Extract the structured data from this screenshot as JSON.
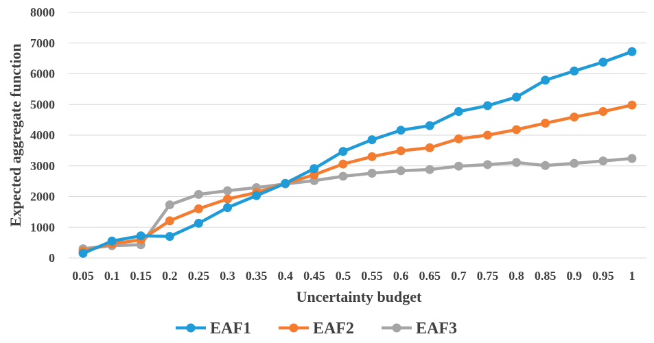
{
  "chart_data": {
    "type": "line",
    "title": "",
    "xlabel": "Uncertainty budget",
    "ylabel": "Expected aggregate function",
    "ylim": [
      0,
      8000
    ],
    "yticks": [
      "0",
      "1000",
      "2000",
      "3000",
      "4000",
      "5000",
      "6000",
      "7000",
      "8000"
    ],
    "categories": [
      "0.05",
      "0.1",
      "0.15",
      "0.2",
      "0.25",
      "0.3",
      "0.35",
      "0.4",
      "0.45",
      "0.5",
      "0.55",
      "0.6",
      "0.65",
      "0.7",
      "0.75",
      "0.8",
      "0.85",
      "0.9",
      "0.95",
      "1"
    ],
    "grid": true,
    "legend_position": "bottom",
    "series": [
      {
        "name": "EAF1",
        "color": "#1f9bd7",
        "values": [
          150,
          550,
          720,
          700,
          1130,
          1640,
          2030,
          2430,
          2910,
          3470,
          3850,
          4160,
          4310,
          4770,
          4960,
          5240,
          5790,
          6090,
          6380,
          6720
        ]
      },
      {
        "name": "EAF2",
        "color": "#f47c30",
        "values": [
          220,
          460,
          590,
          1210,
          1600,
          1920,
          2130,
          2420,
          2710,
          3060,
          3300,
          3490,
          3590,
          3880,
          4000,
          4180,
          4390,
          4590,
          4770,
          4980
        ]
      },
      {
        "name": "EAF3",
        "color": "#a5a5a5",
        "values": [
          300,
          400,
          430,
          1730,
          2070,
          2190,
          2290,
          2410,
          2520,
          2660,
          2760,
          2840,
          2880,
          2990,
          3040,
          3110,
          3010,
          3080,
          3160,
          3240
        ]
      }
    ]
  }
}
